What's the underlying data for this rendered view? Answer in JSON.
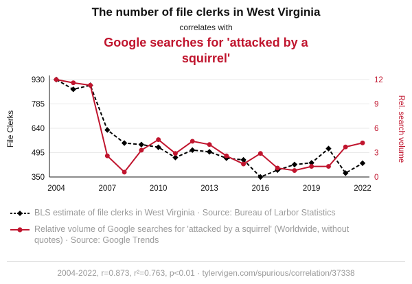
{
  "header": {
    "title": "The number of file clerks in West Virginia",
    "connector": "correlates with",
    "subtitle": "Google searches for 'attacked by a squirrel'"
  },
  "chart_data": {
    "type": "line",
    "x": [
      2004,
      2005,
      2006,
      2007,
      2008,
      2009,
      2010,
      2011,
      2012,
      2013,
      2014,
      2015,
      2016,
      2017,
      2018,
      2019,
      2020,
      2021,
      2022
    ],
    "series": [
      {
        "name": "BLS estimate of file clerks in West Virginia",
        "axis": "left",
        "color": "#000000",
        "marker": "diamond",
        "dash": true,
        "values": [
          930,
          872,
          896,
          630,
          552,
          543,
          527,
          466,
          510,
          500,
          462,
          452,
          350,
          391,
          424,
          434,
          519,
          373,
          432
        ]
      },
      {
        "name": "Relative volume of Google searches for 'attacked by a squirrel'",
        "axis": "right",
        "color": "#c0152e",
        "marker": "circle",
        "dash": false,
        "values": [
          12,
          11.6,
          11.3,
          2.6,
          0.6,
          3.3,
          4.6,
          2.9,
          4.4,
          4.0,
          2.6,
          1.6,
          2.9,
          1.1,
          0.8,
          1.3,
          1.3,
          3.7,
          4.2
        ]
      }
    ],
    "left_axis": {
      "label": "File Clerks",
      "ticks": [
        350,
        495,
        640,
        785,
        930
      ],
      "min": 350,
      "max": 930
    },
    "right_axis": {
      "label": "Rel. search volume",
      "ticks": [
        0,
        3,
        6,
        9,
        12
      ],
      "min": 0,
      "max": 12
    },
    "x_ticks": [
      2004,
      2007,
      2010,
      2013,
      2016,
      2019,
      2022
    ],
    "grid": true,
    "legend_position": "bottom"
  },
  "legend": [
    {
      "label": "BLS estimate of file clerks in West Virginia · Source: Bureau of Larbor Statistics"
    },
    {
      "label": "Relative volume of Google searches for 'attacked by a squirrel' (Worldwide, without quotes) · Source: Google Trends"
    }
  ],
  "footer": {
    "text": "2004-2022, r=0.873, r²=0.763, p<0.01 · tylervigen.com/spurious/correlation/37338"
  },
  "colors": {
    "accent": "#c0152e",
    "black_series": "#000000",
    "grid": "#e9e9e9",
    "legend_text": "#9b9b9b"
  }
}
